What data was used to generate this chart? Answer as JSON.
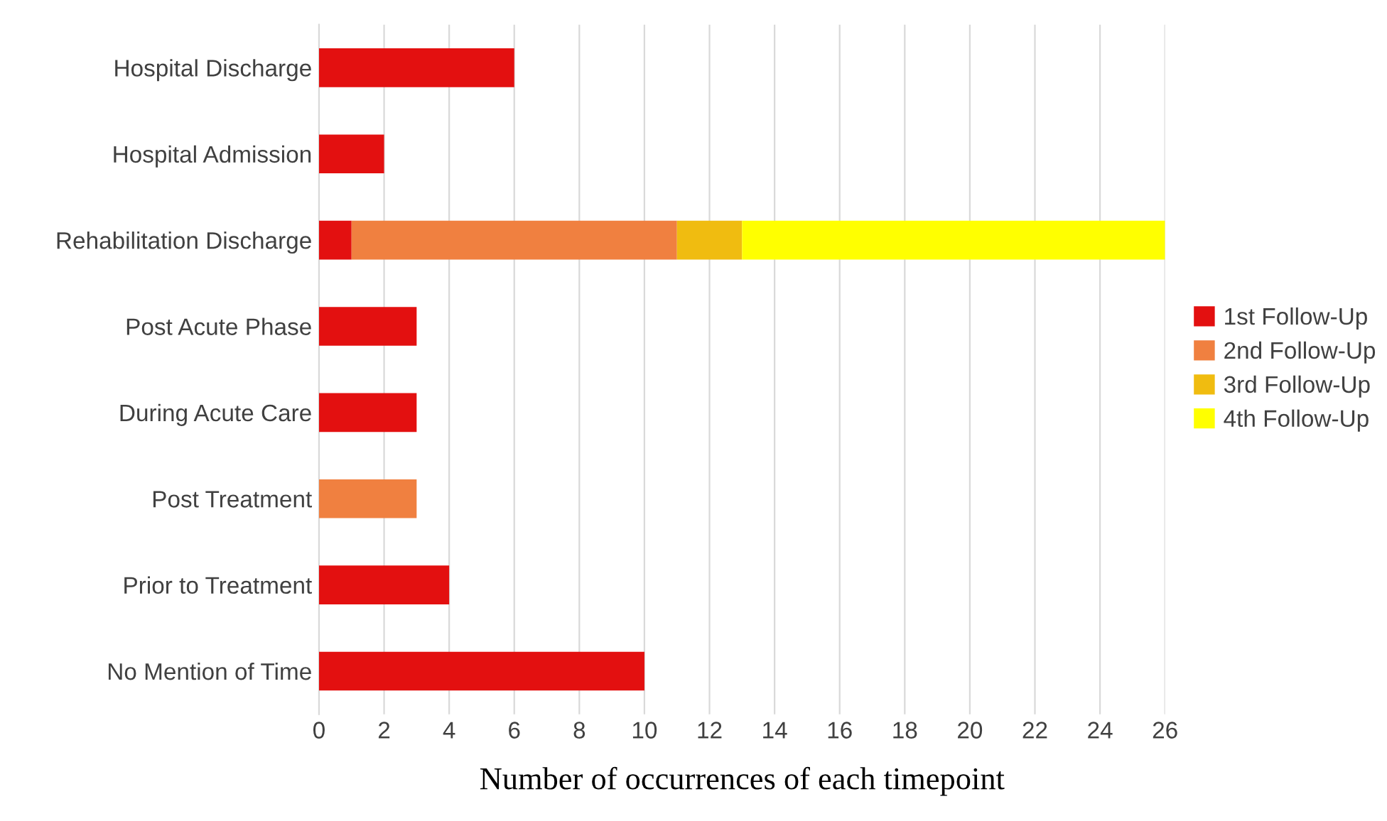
{
  "chart_data": {
    "type": "bar",
    "orientation": "horizontal",
    "stacked": true,
    "xlabel": "Number of occurrences of each timepoint",
    "categories": [
      "Hospital Discharge",
      "Hospital Admission",
      "Rehabilitation Discharge",
      "Post Acute Phase",
      "During Acute Care",
      "Post Treatment",
      "Prior to Treatment",
      "No Mention of Time"
    ],
    "series": [
      {
        "name": "1st Follow-Up",
        "color": "#e31010",
        "values": [
          6,
          2,
          1,
          3,
          3,
          null,
          4,
          10
        ]
      },
      {
        "name": "2nd Follow-Up",
        "color": "#f08040",
        "values": [
          null,
          null,
          10,
          null,
          null,
          3,
          null,
          null
        ]
      },
      {
        "name": "3rd Follow-Up",
        "color": "#f0bc10",
        "values": [
          null,
          null,
          2,
          null,
          null,
          null,
          null,
          null
        ]
      },
      {
        "name": "4th Follow-Up",
        "color": "#ffff00",
        "values": [
          null,
          null,
          13,
          null,
          null,
          null,
          null,
          null
        ]
      }
    ],
    "xlim": [
      0,
      26
    ],
    "xticks": [
      0,
      2,
      4,
      6,
      8,
      10,
      12,
      14,
      16,
      18,
      20,
      22,
      24,
      26
    ],
    "grid": "x",
    "legend": "right"
  }
}
